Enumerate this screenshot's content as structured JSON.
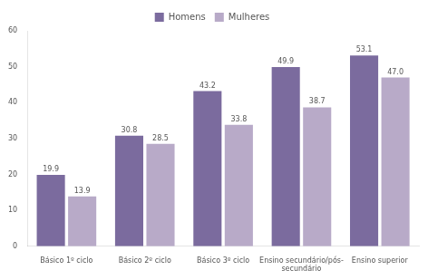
{
  "chart_data": {
    "type": "bar",
    "categories": [
      "Básico 1º ciclo",
      "Básico 2º ciclo",
      "Básico 3º ciclo",
      "Ensino secundário/pós-\nsecundário",
      "Ensino superior"
    ],
    "series": [
      {
        "name": "Homens",
        "color": "#7b6b9e",
        "values": [
          19.9,
          30.8,
          43.2,
          49.9,
          53.1
        ],
        "value_labels": [
          "19.9",
          "30.8",
          "43.2",
          "49.9",
          "53.1"
        ]
      },
      {
        "name": "Mulheres",
        "color": "#b8aac8",
        "values": [
          13.9,
          28.5,
          33.8,
          38.7,
          47.0
        ],
        "value_labels": [
          "13.9",
          "28.5",
          "33.8",
          "38.7",
          "47.0"
        ]
      }
    ],
    "ylim": [
      0,
      60
    ],
    "yticks": [
      0,
      10,
      20,
      30,
      40,
      50,
      60
    ],
    "grid": false,
    "legend": "top",
    "data_labels": true
  }
}
